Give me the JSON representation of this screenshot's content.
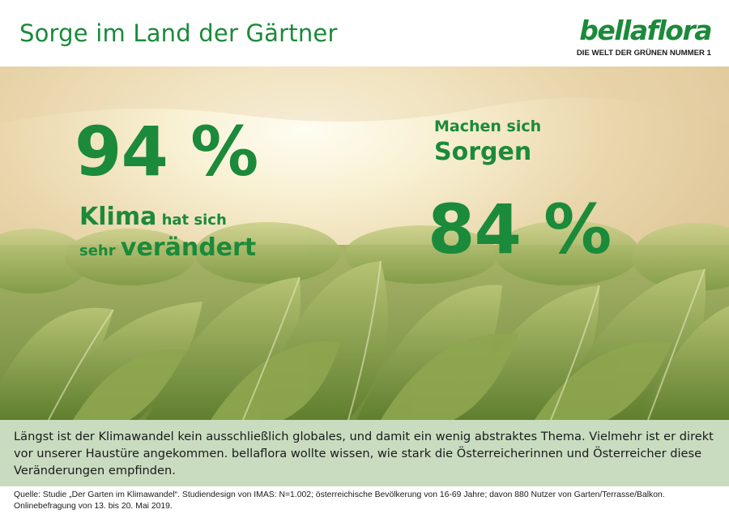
{
  "header": {
    "title": "Sorge im Land der Gärtner",
    "logo": {
      "wordmark": "bellaflora",
      "tagline": "DIE WELT DER GRÜNEN NUMMER 1"
    }
  },
  "stats": [
    {
      "value": "94 %",
      "caption_line1_big": "Klima",
      "caption_line1_small": " hat sich",
      "caption_line2_small": "sehr ",
      "caption_line2_big": "verändert"
    },
    {
      "value": "84 %",
      "caption_line1": "Machen sich",
      "caption_line2": "Sorgen"
    }
  ],
  "intro": "Längst ist der Klimawandel kein ausschließlich globales, und damit ein wenig abstraktes Thema. Vielmehr ist er direkt vor unserer Haustüre angekommen. bellaflora wollte wissen, wie stark die Österreicherinnen und Österreicher diese Veränderungen empfinden.",
  "source": "Quelle: Studie „Der Garten im Klimawandel“. Studiendesign von IMAS: N=1.002; österreichische Bevölkerung von 16-69 Jahre; davon 880 Nutzer von Garten/Terrasse/Balkon. Onlinebefragung von 13. bis 20. Mai 2019.",
  "colors": {
    "brand_green": "#1b8a3a",
    "intro_band": "#c9dcc0"
  }
}
